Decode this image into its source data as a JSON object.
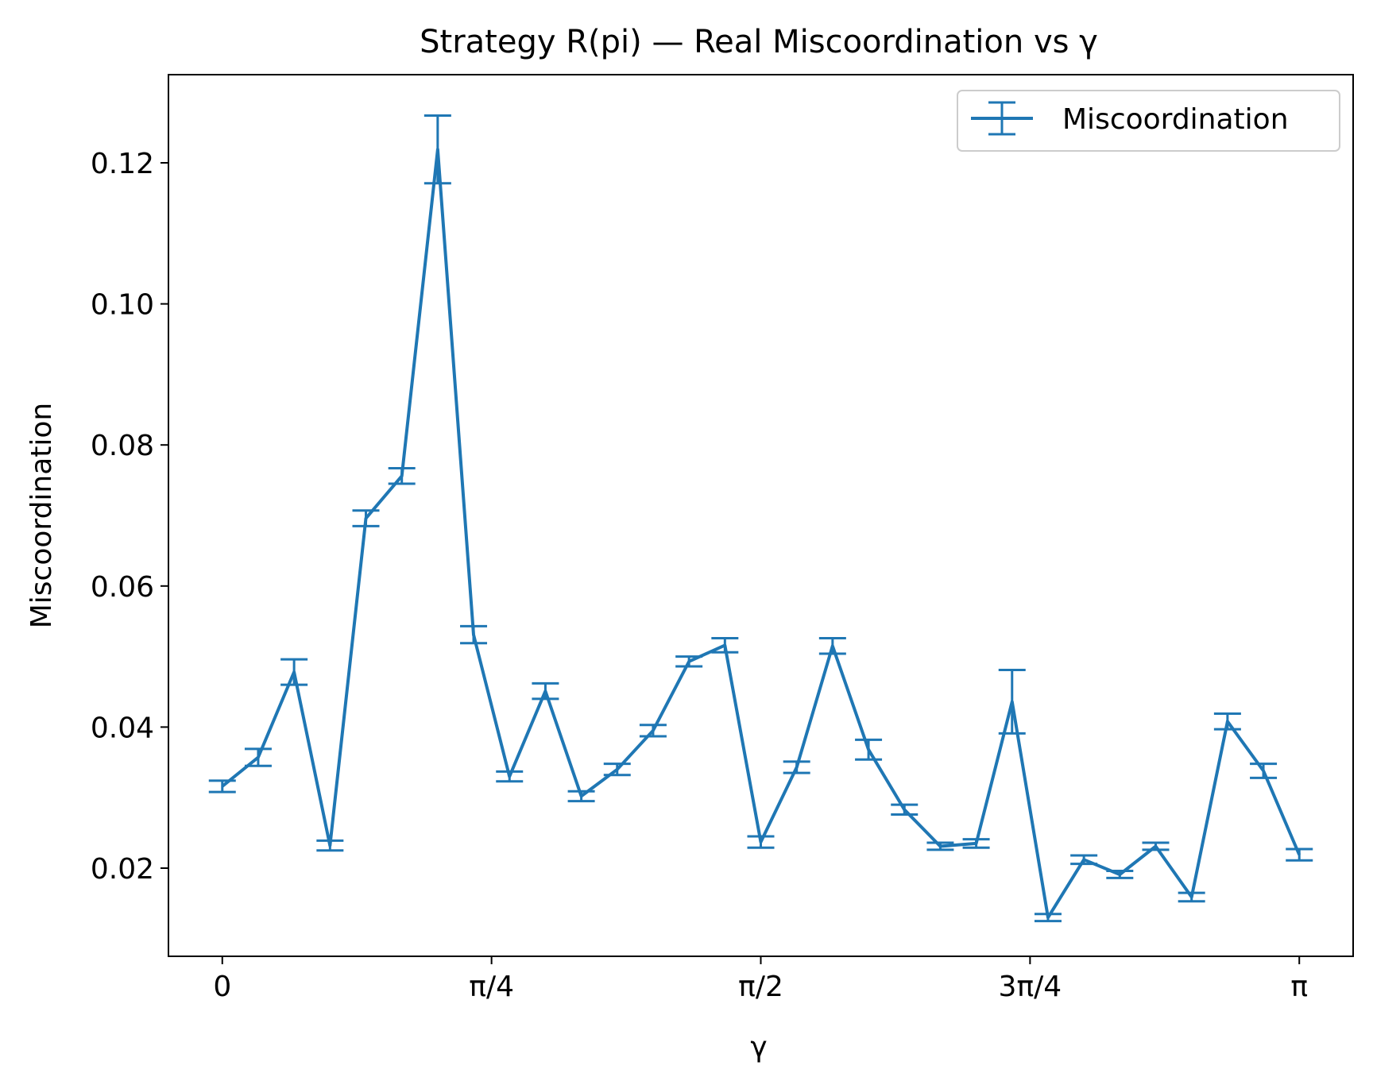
{
  "chart_data": {
    "type": "line",
    "title": "Strategy R(pi) — Real Miscoordination vs γ",
    "xlabel": "γ",
    "ylabel": "Miscoordination",
    "xlim": [
      -0.15708,
      3.29867
    ],
    "ylim": [
      0.0075,
      0.1325
    ],
    "x_ticks": [
      {
        "value": 0,
        "label": "0"
      },
      {
        "value": 0.785398,
        "label": "π/4"
      },
      {
        "value": 1.570796,
        "label": "π/2"
      },
      {
        "value": 2.356194,
        "label": "3π/4"
      },
      {
        "value": 3.141593,
        "label": "π"
      }
    ],
    "y_ticks": [
      {
        "value": 0.02,
        "label": "0.02"
      },
      {
        "value": 0.04,
        "label": "0.04"
      },
      {
        "value": 0.06,
        "label": "0.06"
      },
      {
        "value": 0.08,
        "label": "0.08"
      },
      {
        "value": 0.1,
        "label": "0.10"
      },
      {
        "value": 0.12,
        "label": "0.12"
      }
    ],
    "grid": false,
    "legend_position": "top-right",
    "color": "#1f77b4",
    "series": [
      {
        "name": "Miscoordination",
        "points": [
          {
            "x": 0.0,
            "y": 0.0316,
            "err": 0.0008
          },
          {
            "x": 0.1047,
            "y": 0.0357,
            "err": 0.0012
          },
          {
            "x": 0.2094,
            "y": 0.0478,
            "err": 0.0018
          },
          {
            "x": 0.3142,
            "y": 0.0232,
            "err": 0.0007
          },
          {
            "x": 0.4189,
            "y": 0.0696,
            "err": 0.0011
          },
          {
            "x": 0.5236,
            "y": 0.0756,
            "err": 0.0011
          },
          {
            "x": 0.6283,
            "y": 0.1219,
            "err": 0.0048
          },
          {
            "x": 0.733,
            "y": 0.0531,
            "err": 0.0012
          },
          {
            "x": 0.8378,
            "y": 0.033,
            "err": 0.0007
          },
          {
            "x": 0.9425,
            "y": 0.0451,
            "err": 0.0011
          },
          {
            "x": 1.0472,
            "y": 0.0302,
            "err": 0.0007
          },
          {
            "x": 1.1519,
            "y": 0.034,
            "err": 0.0008
          },
          {
            "x": 1.2566,
            "y": 0.0395,
            "err": 0.0008
          },
          {
            "x": 1.3614,
            "y": 0.0493,
            "err": 0.0007
          },
          {
            "x": 1.4661,
            "y": 0.0516,
            "err": 0.001
          },
          {
            "x": 1.5708,
            "y": 0.0237,
            "err": 0.0008
          },
          {
            "x": 1.6755,
            "y": 0.0343,
            "err": 0.0008
          },
          {
            "x": 1.7802,
            "y": 0.0515,
            "err": 0.0011
          },
          {
            "x": 1.885,
            "y": 0.0368,
            "err": 0.0014
          },
          {
            "x": 1.9897,
            "y": 0.0283,
            "err": 0.0007
          },
          {
            "x": 2.0944,
            "y": 0.0231,
            "err": 0.0005
          },
          {
            "x": 2.1991,
            "y": 0.0235,
            "err": 0.0006
          },
          {
            "x": 2.3038,
            "y": 0.0436,
            "err": 0.0045
          },
          {
            "x": 2.4086,
            "y": 0.013,
            "err": 0.0005
          },
          {
            "x": 2.5133,
            "y": 0.0212,
            "err": 0.0006
          },
          {
            "x": 2.618,
            "y": 0.0191,
            "err": 0.0005
          },
          {
            "x": 2.7227,
            "y": 0.0231,
            "err": 0.0005
          },
          {
            "x": 2.8274,
            "y": 0.0159,
            "err": 0.0006
          },
          {
            "x": 2.9322,
            "y": 0.0408,
            "err": 0.0011
          },
          {
            "x": 3.0369,
            "y": 0.0338,
            "err": 0.001
          },
          {
            "x": 3.1416,
            "y": 0.0219,
            "err": 0.0008
          }
        ]
      }
    ]
  }
}
